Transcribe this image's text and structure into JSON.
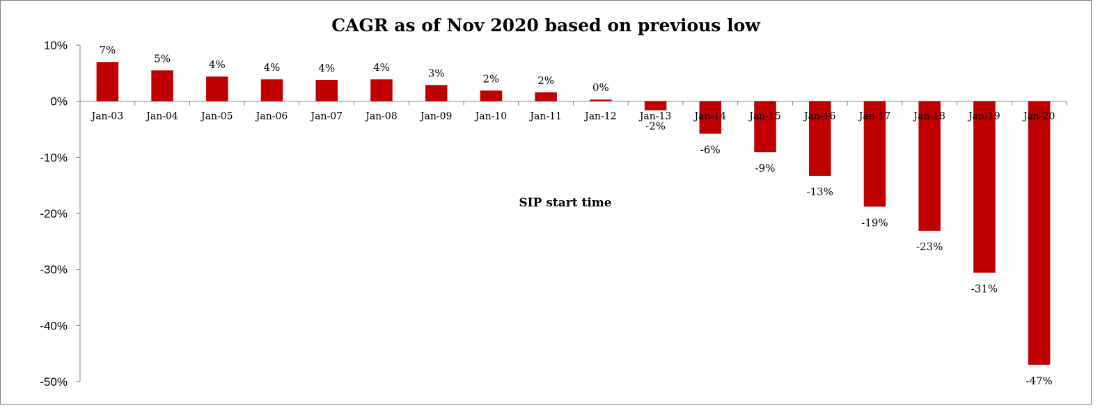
{
  "chart_data": {
    "type": "bar",
    "title": "CAGR as of Nov 2020 based on previous low",
    "xlabel": "SIP start time",
    "ylabel": "",
    "ylim": [
      -50,
      10
    ],
    "ytick_step": 10,
    "ytick_labels": [
      "10%",
      "0%",
      "-10%",
      "-20%",
      "-30%",
      "-40%",
      "-50%"
    ],
    "grid": false,
    "legend": "none",
    "bar_color": "#C00000",
    "categories": [
      "Jan-03",
      "Jan-04",
      "Jan-05",
      "Jan-06",
      "Jan-07",
      "Jan-08",
      "Jan-09",
      "Jan-10",
      "Jan-11",
      "Jan-12",
      "Jan-13",
      "Jan-14",
      "Jan-15",
      "Jan-16",
      "Jan-17",
      "Jan-18",
      "Jan-19",
      "Jan-20"
    ],
    "values": [
      7.0,
      5.5,
      4.4,
      3.9,
      3.8,
      3.9,
      2.9,
      1.9,
      1.6,
      0.3,
      -1.6,
      -5.8,
      -9.1,
      -13.3,
      -18.8,
      -23.1,
      -30.6,
      -47.0
    ],
    "data_labels": [
      "7%",
      "5%",
      "4%",
      "4%",
      "4%",
      "4%",
      "3%",
      "2%",
      "2%",
      "0%",
      "-2%",
      "-6%",
      "-9%",
      "-13%",
      "-19%",
      "-23%",
      "-31%",
      "-47%"
    ]
  }
}
